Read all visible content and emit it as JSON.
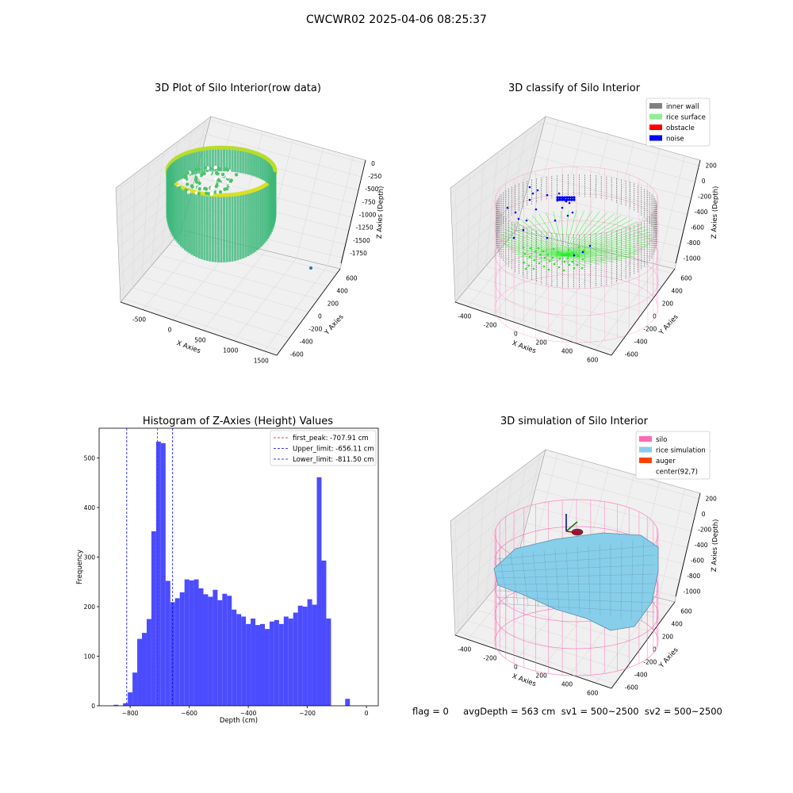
{
  "suptitle": "CWCWR02 2025-04-06 08:25:37",
  "footer": "flag = 0     avgDepth = 563 cm  sv1 = 500~2500  sv2 = 500~2500",
  "colors": {
    "hist": "#4c4cff",
    "first_peak": "#ff0000",
    "limit": "#0000ff",
    "inner_wall": "#808080",
    "rice_surface": "#90ee90",
    "obstacle": "#ff0000",
    "noise": "#0000ff",
    "silo": "#ff69b4",
    "rice_simulation": "#87ceeb",
    "auger": "#ff4500"
  },
  "chart_data": [
    {
      "type": "scatter",
      "title": "3D Plot of Silo Interior(row data)",
      "xlabel": "X Axies",
      "ylabel": "Y Axies",
      "zlabel": "Z Axies (Depth)",
      "xticks": [
        "-500",
        "0",
        "500",
        "1000",
        "1500"
      ],
      "yticks": [
        "-600",
        "-400",
        "-200",
        "0",
        "200",
        "400",
        "600"
      ],
      "zticks": [
        "0",
        "-250",
        "-500",
        "-750",
        "-1000",
        "-1250",
        "-1500",
        "-1750"
      ]
    },
    {
      "type": "scatter",
      "title": "3D classify of Silo Interior",
      "xlabel": "X Axies",
      "ylabel": "Y Axies",
      "zlabel": "Z Axies (Depth)",
      "xticks": [
        "-400",
        "-200",
        "0",
        "200",
        "400",
        "600"
      ],
      "yticks": [
        "-600",
        "-400",
        "-200",
        "0",
        "200",
        "400",
        "600"
      ],
      "zticks": [
        "200",
        "0",
        "-200",
        "-400",
        "-600",
        "-800",
        "-1000"
      ],
      "legend": [
        "inner wall",
        "rice surface",
        "obstacle",
        "noise"
      ],
      "legend_loc": "top-right"
    },
    {
      "type": "bar",
      "title": "Histogram of Z-Axies (Height) Values",
      "xlabel": "Depth (cm)",
      "ylabel": "Frequency",
      "xlim": [
        -905,
        40
      ],
      "ylim": [
        0,
        560
      ],
      "xticks": [
        -800,
        -600,
        -400,
        -200,
        0
      ],
      "yticks": [
        0,
        100,
        200,
        300,
        400,
        500
      ],
      "bin_width": 16,
      "bins_start": [
        -856,
        -840,
        -824,
        -808,
        -792,
        -776,
        -760,
        -744,
        -728,
        -712,
        -696,
        -680,
        -664,
        -648,
        -632,
        -616,
        -600,
        -584,
        -568,
        -552,
        -536,
        -520,
        -504,
        -488,
        -472,
        -456,
        -440,
        -424,
        -408,
        -392,
        -376,
        -360,
        -344,
        -328,
        -312,
        -296,
        -280,
        -264,
        -248,
        -232,
        -216,
        -200,
        -184,
        -168,
        -152,
        -136,
        -120,
        -104,
        -88,
        -72,
        -56,
        -40,
        -24,
        -8
      ],
      "values": [
        2,
        0,
        5,
        27,
        67,
        135,
        147,
        175,
        352,
        533,
        530,
        252,
        209,
        217,
        229,
        255,
        253,
        255,
        237,
        225,
        220,
        234,
        213,
        226,
        222,
        194,
        185,
        180,
        165,
        176,
        163,
        165,
        155,
        170,
        173,
        165,
        180,
        176,
        188,
        202,
        200,
        215,
        204,
        461,
        293,
        176,
        0,
        0,
        0,
        14,
        0,
        0,
        0,
        0
      ],
      "lines": [
        {
          "name": "first_peak: -707.91 cm",
          "x": -707.91,
          "color": "#ff0000"
        },
        {
          "name": "Upper_limit: -656.11 cm",
          "x": -656.11,
          "color": "#0000ff"
        },
        {
          "name": "Lower_limit: -811.50 cm",
          "x": -811.5,
          "color": "#0000ff"
        }
      ],
      "legend_loc": "top-right"
    },
    {
      "type": "surface",
      "title": "3D simulation of Silo Interior",
      "xlabel": "X Axies",
      "ylabel": "Y Axies",
      "zlabel": "Z Axies (Depth)",
      "xticks": [
        "-400",
        "-200",
        "0",
        "200",
        "400",
        "600"
      ],
      "yticks": [
        "-600",
        "-400",
        "-200",
        "0",
        "200",
        "400",
        "600"
      ],
      "zticks": [
        "200",
        "0",
        "-200",
        "-400",
        "-600",
        "-800",
        "-1000"
      ],
      "legend": [
        "silo",
        "rice simulation",
        "auger",
        "center(92,7)"
      ],
      "legend_loc": "top-right"
    }
  ]
}
